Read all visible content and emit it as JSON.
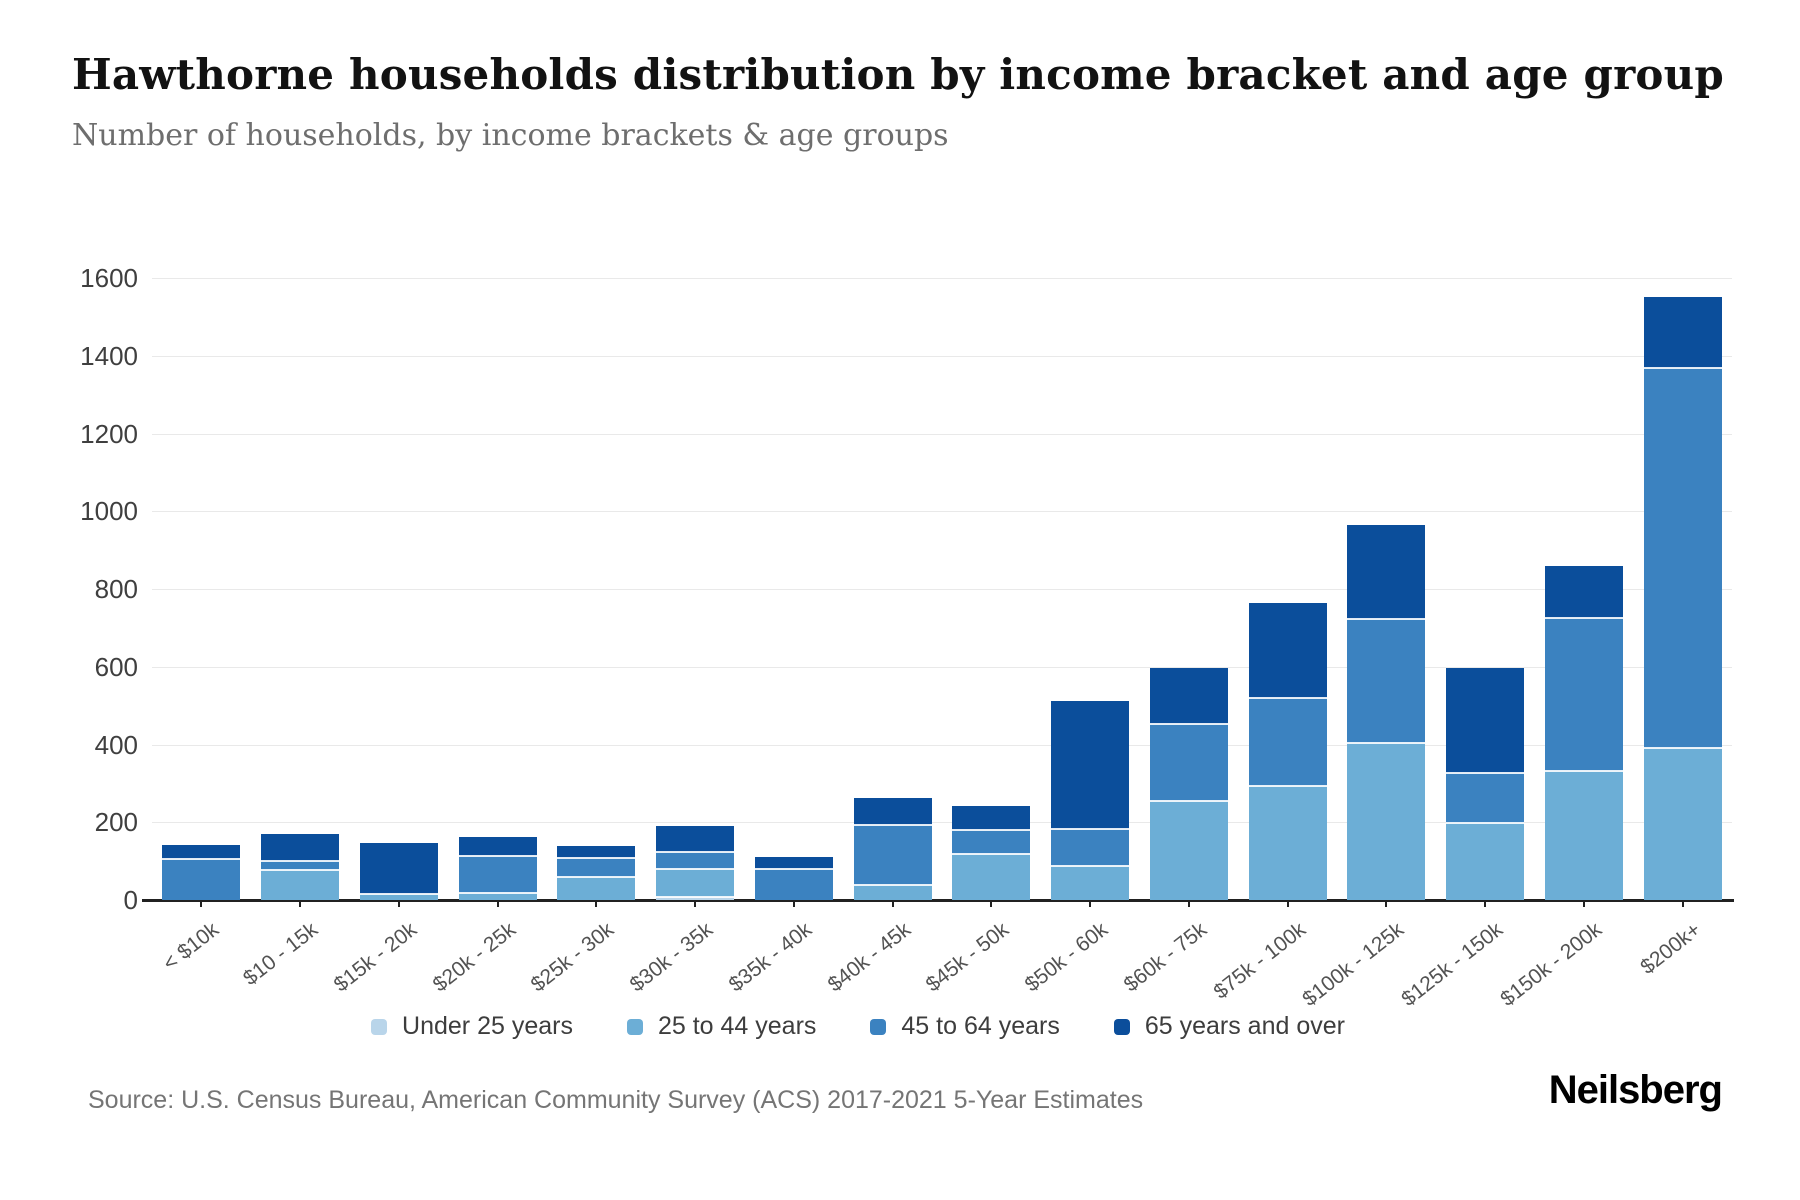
{
  "header": {
    "title": "Hawthorne households distribution by income bracket and age group",
    "subtitle": "Number of households, by income brackets & age groups"
  },
  "chart_data": {
    "type": "bar",
    "stacked": true,
    "title": "Hawthorne households distribution by income bracket and age group",
    "subtitle": "Number of households, by income brackets & age groups",
    "xlabel": "",
    "ylabel": "",
    "ylim": [
      0,
      1600
    ],
    "yticks": [
      0,
      200,
      400,
      600,
      800,
      1000,
      1200,
      1400,
      1600
    ],
    "grid": true,
    "legend_position": "bottom",
    "categories": [
      "< $10k",
      "$10 - 15k",
      "$15k - 20k",
      "$20k - 25k",
      "$25k - 30k",
      "$30k - 35k",
      "$35k - 40k",
      "$40k - 45k",
      "$45k - 50k",
      "$50k - 60k",
      "$60k - 75k",
      "$75k - 100k",
      "$100k - 125k",
      "$125k - 150k",
      "$150k - 200k",
      "$200k+"
    ],
    "series": [
      {
        "name": "Under 25 years",
        "color": "#b9d5ea",
        "values": [
          0,
          0,
          0,
          0,
          0,
          8,
          0,
          0,
          0,
          0,
          0,
          0,
          0,
          0,
          0,
          0
        ]
      },
      {
        "name": "25 to 44 years",
        "color": "#6caed6",
        "values": [
          0,
          78,
          15,
          17,
          60,
          72,
          0,
          39,
          119,
          88,
          254,
          294,
          403,
          198,
          331,
          392
        ]
      },
      {
        "name": "45 to 64 years",
        "color": "#3b82c0",
        "values": [
          105,
          22,
          0,
          95,
          49,
          43,
          81,
          155,
          60,
          94,
          200,
          225,
          321,
          129,
          394,
          976
        ]
      },
      {
        "name": "65 years and over",
        "color": "#0b4e9b",
        "values": [
          37,
          70,
          132,
          49,
          29,
          68,
          29,
          68,
          64,
          330,
          144,
          246,
          241,
          271,
          135,
          183
        ]
      }
    ],
    "totals": [
      142,
      170,
      147,
      161,
      138,
      191,
      110,
      262,
      243,
      512,
      598,
      765,
      965,
      598,
      860,
      1551
    ]
  },
  "legend": {
    "items": [
      {
        "label": "Under 25 years",
        "color": "#b9d5ea"
      },
      {
        "label": "25 to 44 years",
        "color": "#6caed6"
      },
      {
        "label": "45 to 64 years",
        "color": "#3b82c0"
      },
      {
        "label": "65 years and over",
        "color": "#0b4e9b"
      }
    ]
  },
  "footer": {
    "source": "Source: U.S. Census Bureau, American Community Survey (ACS) 2017-2021 5-Year Estimates",
    "logo": "Neilsberg"
  }
}
